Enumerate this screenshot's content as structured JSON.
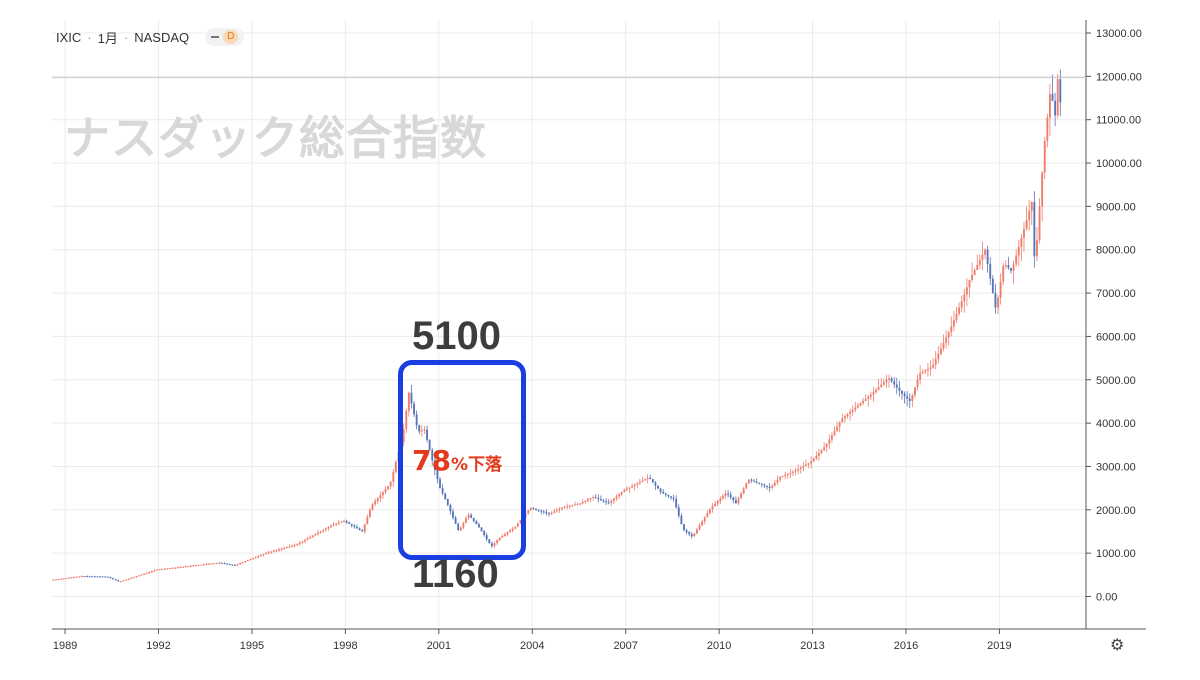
{
  "header": {
    "symbol": "IXIC",
    "interval": "1月",
    "exchange": "NASDAQ",
    "dot": "·",
    "badge": "D"
  },
  "watermark": "ナスダック総合指数",
  "annotations": {
    "peak_label": "5100",
    "trough_label": "1160",
    "drop_percent": "78",
    "drop_unit": "%下落"
  },
  "colors": {
    "up": "#ef7b6b",
    "down": "#5674b9",
    "grid": "#ececec",
    "highlight_box": "#1a3fe0",
    "drop_text": "#e23a1a",
    "crosshair": "#c9c9c9"
  },
  "chart_data": {
    "type": "candlestick",
    "x_ticks": [
      "1989",
      "1992",
      "1995",
      "1998",
      "2001",
      "2004",
      "2007",
      "2010",
      "2013",
      "2016",
      "2019"
    ],
    "y_ticks": [
      "0.00",
      "1000.00",
      "2000.00",
      "3000.00",
      "4000.00",
      "5000.00",
      "6000.00",
      "7000.00",
      "8000.00",
      "9000.00",
      "10000.00",
      "11000.00",
      "12000.00",
      "13000.00"
    ],
    "ylim": [
      -750,
      13300
    ],
    "xlim": [
      1988.6,
      2021.8
    ],
    "crosshair_value": 11970,
    "grid": true,
    "keypoints": [
      [
        1988.6,
        380
      ],
      [
        1989.6,
        470
      ],
      [
        1990.4,
        460
      ],
      [
        1990.8,
        340
      ],
      [
        1991.5,
        500
      ],
      [
        1992.0,
        620
      ],
      [
        1993.0,
        700
      ],
      [
        1994.0,
        780
      ],
      [
        1994.5,
        720
      ],
      [
        1995.5,
        1000
      ],
      [
        1996.5,
        1200
      ],
      [
        1997.5,
        1600
      ],
      [
        1998.0,
        1750
      ],
      [
        1998.6,
        1500
      ],
      [
        1998.9,
        2100
      ],
      [
        1999.5,
        2600
      ],
      [
        1999.9,
        3700
      ],
      [
        2000.1,
        4700
      ],
      [
        2000.4,
        3800
      ],
      [
        2000.6,
        3850
      ],
      [
        2000.9,
        3000
      ],
      [
        2001.1,
        2500
      ],
      [
        2001.3,
        2200
      ],
      [
        2001.7,
        1500
      ],
      [
        2002.0,
        1900
      ],
      [
        2002.4,
        1550
      ],
      [
        2002.75,
        1150
      ],
      [
        2003.0,
        1350
      ],
      [
        2003.5,
        1600
      ],
      [
        2004.0,
        2050
      ],
      [
        2004.6,
        1900
      ],
      [
        2005.0,
        2050
      ],
      [
        2005.6,
        2150
      ],
      [
        2006.0,
        2300
      ],
      [
        2006.5,
        2150
      ],
      [
        2007.0,
        2450
      ],
      [
        2007.8,
        2750
      ],
      [
        2008.2,
        2400
      ],
      [
        2008.6,
        2250
      ],
      [
        2008.9,
        1550
      ],
      [
        2009.2,
        1380
      ],
      [
        2009.8,
        2050
      ],
      [
        2010.3,
        2400
      ],
      [
        2010.6,
        2150
      ],
      [
        2011.0,
        2700
      ],
      [
        2011.7,
        2500
      ],
      [
        2012.0,
        2750
      ],
      [
        2012.5,
        2900
      ],
      [
        2013.0,
        3100
      ],
      [
        2013.5,
        3500
      ],
      [
        2014.0,
        4100
      ],
      [
        2014.5,
        4400
      ],
      [
        2015.0,
        4700
      ],
      [
        2015.5,
        5050
      ],
      [
        2015.9,
        4700
      ],
      [
        2016.2,
        4500
      ],
      [
        2016.5,
        5150
      ],
      [
        2016.9,
        5300
      ],
      [
        2017.5,
        6200
      ],
      [
        2017.9,
        6900
      ],
      [
        2018.1,
        7300
      ],
      [
        2018.6,
        8000
      ],
      [
        2018.95,
        6600
      ],
      [
        2019.2,
        7700
      ],
      [
        2019.45,
        7500
      ],
      [
        2019.9,
        8600
      ],
      [
        2020.1,
        9100
      ],
      [
        2020.2,
        7600
      ],
      [
        2020.5,
        10400
      ],
      [
        2020.7,
        11700
      ],
      [
        2020.85,
        11100
      ],
      [
        2020.95,
        12100
      ],
      [
        2021.0,
        11400
      ]
    ]
  }
}
